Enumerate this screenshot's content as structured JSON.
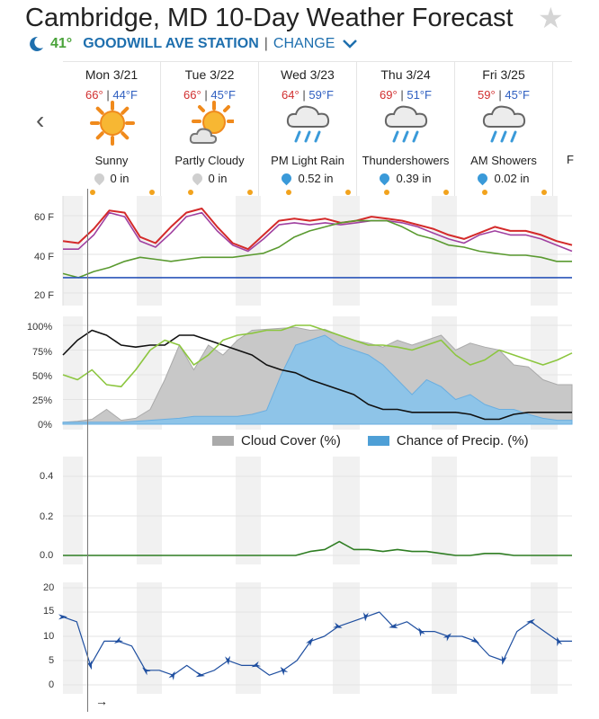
{
  "header": {
    "title": "Cambridge, MD 10-Day Weather Forecast",
    "current_temp": "41°",
    "station": "GOODWILL AVE STATION",
    "separator": "|",
    "change_label": "CHANGE"
  },
  "days": [
    {
      "name": "Mon 3/21",
      "hi": "66°",
      "lo": "44°F",
      "condition": "Sunny",
      "precip": "0 in",
      "icon": "sun-icon",
      "precip_icon": "grey"
    },
    {
      "name": "Tue 3/22",
      "hi": "66°",
      "lo": "45°F",
      "condition": "Partly Cloudy",
      "precip": "0 in",
      "icon": "partly-cloudy-icon",
      "precip_icon": "grey"
    },
    {
      "name": "Wed 3/23",
      "hi": "64°",
      "lo": "59°F",
      "condition": "PM Light Rain",
      "precip": "0.52 in",
      "icon": "rain-cloud-icon",
      "precip_icon": "blue"
    },
    {
      "name": "Thu 3/24",
      "hi": "69°",
      "lo": "51°F",
      "condition": "Thundershowers",
      "precip": "0.39 in",
      "icon": "rain-cloud-icon",
      "precip_icon": "blue"
    },
    {
      "name": "Fri 3/25",
      "hi": "59°",
      "lo": "45°F",
      "condition": "AM Showers",
      "precip": "0.02 in",
      "icon": "rain-cloud-icon",
      "precip_icon": "blue"
    }
  ],
  "partial_day_letter": "F",
  "panels": {
    "temperature": {
      "ticks": [
        "60 F",
        "40 F",
        "20 F"
      ]
    },
    "percent": {
      "ticks": [
        "100%",
        "75%",
        "50%",
        "25%",
        "0%"
      ]
    },
    "precip_amount": {
      "ticks": [
        "0.4",
        "0.2",
        "0.0"
      ]
    },
    "wind": {
      "ticks": [
        "20",
        "15",
        "10",
        "5",
        "0"
      ]
    }
  },
  "legend": {
    "cloud_cover": "Cloud Cover (%)",
    "precip_chance": "Chance of Precip. (%)"
  },
  "now_arrow": "→",
  "colors": {
    "high_temp": "#d12f2f",
    "low_temp": "#2f5fc0",
    "temp_line": "#d42a2a",
    "dewpoint_line": "#a040a0",
    "green_line": "#5a9a30",
    "freezing_line": "#2a55b8",
    "cloud_fill": "#c8c8c8",
    "precip_fill": "#8ec4e8",
    "station_blue": "#1e6fae"
  },
  "chart_data": [
    {
      "type": "line",
      "series": [
        {
          "values": [
            50,
            49,
            56,
            65,
            64,
            52,
            49,
            57,
            64,
            66,
            57,
            49,
            46,
            53,
            60,
            61,
            60,
            61,
            59,
            60,
            62,
            61,
            60,
            58,
            56,
            53,
            51,
            54,
            57,
            55,
            55,
            53,
            50,
            48
          ]
        },
        {
          "values": [
            46,
            46,
            53,
            64,
            62,
            50,
            47,
            54,
            62,
            64,
            55,
            48,
            45,
            51,
            58,
            59,
            58,
            59,
            58,
            59,
            60,
            60,
            59,
            57,
            54,
            51,
            49,
            53,
            55,
            53,
            53,
            51,
            48,
            45
          ]
        },
        {
          "values": [
            34,
            32,
            35,
            37,
            40,
            42,
            41,
            40,
            41,
            42,
            42,
            42,
            43,
            44,
            47,
            52,
            55,
            57,
            59,
            60,
            60,
            60,
            57,
            53,
            51,
            48,
            47,
            45,
            44,
            43,
            43,
            42,
            40,
            40
          ]
        },
        {
          "values": [
            32,
            32,
            32,
            32,
            32,
            32,
            32,
            32,
            32,
            32,
            32,
            32,
            32,
            32,
            32,
            32,
            32,
            32,
            32,
            32,
            32,
            32,
            32,
            32,
            32,
            32,
            32,
            32,
            32,
            32,
            32,
            32,
            32,
            32
          ]
        }
      ],
      "ylim": [
        20,
        70
      ]
    },
    {
      "type": "area",
      "series": [
        {
          "name": "Cloud Cover (%)",
          "values": [
            2,
            3,
            5,
            15,
            4,
            6,
            15,
            45,
            80,
            55,
            80,
            70,
            85,
            95,
            96,
            97,
            98,
            95,
            96,
            90,
            85,
            82,
            78,
            85,
            80,
            85,
            90,
            75,
            82,
            78,
            75,
            60,
            58,
            45,
            40,
            40
          ]
        },
        {
          "name": "Chance of Precip. (%)",
          "values": [
            2,
            2,
            2,
            2,
            2,
            3,
            4,
            5,
            6,
            8,
            8,
            8,
            8,
            10,
            14,
            50,
            80,
            85,
            90,
            80,
            75,
            70,
            60,
            45,
            30,
            45,
            38,
            25,
            30,
            20,
            15,
            15,
            10,
            6,
            4,
            4
          ]
        },
        {
          "values": [
            70,
            85,
            95,
            90,
            80,
            78,
            80,
            80,
            90,
            90,
            85,
            80,
            75,
            70,
            60,
            55,
            52,
            45,
            40,
            35,
            30,
            20,
            15,
            15,
            12,
            12,
            12,
            12,
            10,
            5,
            5,
            10,
            12,
            12,
            12,
            12
          ]
        },
        {
          "values": [
            50,
            45,
            55,
            40,
            38,
            55,
            75,
            85,
            80,
            60,
            70,
            85,
            90,
            92,
            95,
            95,
            100,
            100,
            95,
            90,
            85,
            80,
            80,
            78,
            75,
            80,
            85,
            70,
            60,
            65,
            75,
            70,
            65,
            60,
            65,
            72
          ]
        }
      ],
      "ylim": [
        0,
        100
      ]
    },
    {
      "type": "line",
      "series": [
        {
          "values": [
            0,
            0,
            0,
            0,
            0,
            0,
            0,
            0,
            0,
            0,
            0,
            0,
            0,
            0,
            0,
            0,
            0,
            0.02,
            0.03,
            0.07,
            0.03,
            0.03,
            0.02,
            0.03,
            0.02,
            0.02,
            0.01,
            0,
            0,
            0.01,
            0.01,
            0,
            0,
            0,
            0,
            0
          ]
        }
      ],
      "ylim": [
        0,
        0.5
      ]
    },
    {
      "type": "line",
      "series": [
        {
          "values": [
            14,
            13,
            4,
            9,
            9,
            8,
            3,
            3,
            2,
            4,
            2,
            3,
            5,
            4,
            4,
            2,
            3,
            5,
            9,
            10,
            12,
            13,
            14,
            15,
            12,
            13,
            11,
            11,
            10,
            10,
            9,
            6,
            5,
            11,
            13,
            11,
            9,
            9
          ]
        }
      ],
      "ylim": [
        0,
        20
      ]
    }
  ]
}
